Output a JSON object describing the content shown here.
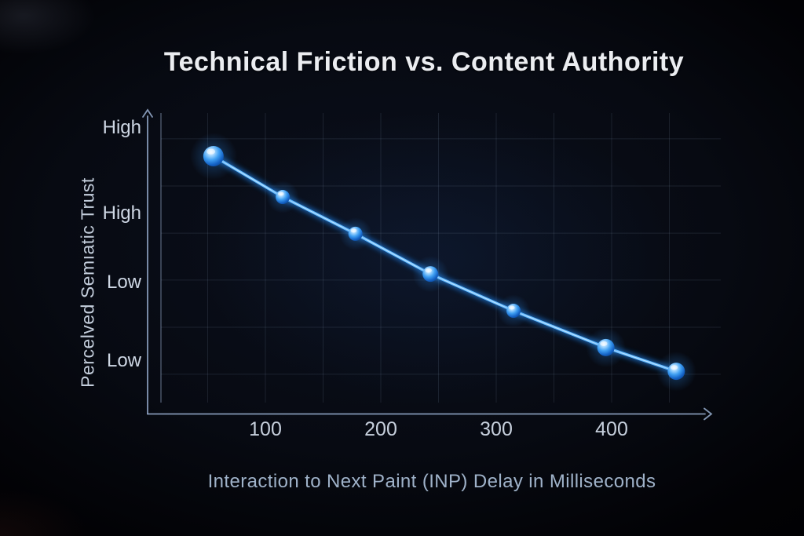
{
  "title": "Technical Friction vs. Content Authority",
  "chart_data": {
    "type": "line",
    "title": "Technical Friction vs. Content Authority",
    "xlabel": "Interaction to Next Paint (INP) Delay in Milliseconds",
    "ylabel": "Percelved Semıatic Trust",
    "x_ticks": [
      {
        "value": 100,
        "label": "100"
      },
      {
        "value": 200,
        "label": "200"
      },
      {
        "value": 300,
        "label": "300"
      },
      {
        "value": 400,
        "label": "400"
      }
    ],
    "y_ticks": [
      {
        "label": "High",
        "pos": 0.949
      },
      {
        "label": "High",
        "pos": 0.653
      },
      {
        "label": "Low",
        "pos": 0.415
      },
      {
        "label": "Low",
        "pos": 0.144
      }
    ],
    "xlim": [
      0,
      495
    ],
    "ylim": [
      "Low",
      "High"
    ],
    "grid": true,
    "legend_position": "none",
    "x_gridlines_ms": [
      50,
      100,
      150,
      200,
      250,
      300,
      350,
      400,
      450
    ],
    "y_gridlines_pos": [
      0.911,
      0.748,
      0.585,
      0.423,
      0.26,
      0.098
    ],
    "points": [
      {
        "inp_ms": 55,
        "trust": 0.851,
        "r": 13
      },
      {
        "inp_ms": 115,
        "trust": 0.71,
        "r": 9
      },
      {
        "inp_ms": 178,
        "trust": 0.583,
        "r": 9
      },
      {
        "inp_ms": 243,
        "trust": 0.444,
        "r": 10
      },
      {
        "inp_ms": 315,
        "trust": 0.317,
        "r": 9
      },
      {
        "inp_ms": 395,
        "trust": 0.19,
        "r": 11
      },
      {
        "inp_ms": 456,
        "trust": 0.108,
        "r": 11
      }
    ],
    "colors": {
      "line": "#63bbff",
      "line_core": "#d9eeff",
      "line_glow": "#1d7fe6",
      "point_glow": "#2e8ff0",
      "grid": "rgba(160,185,220,0.13)",
      "plot_border": "rgba(170,195,230,0.38)",
      "axis": "rgba(155,178,212,0.85)",
      "title": "#ebedf1",
      "tick_text": "#ced7e4",
      "axis_text": "#9fb2c9"
    }
  }
}
